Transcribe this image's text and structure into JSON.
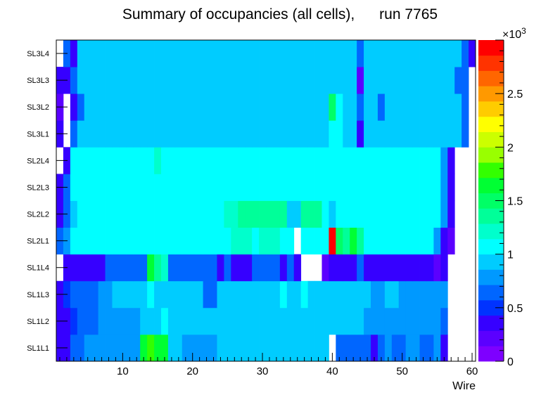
{
  "chart_data": {
    "type": "heatmap",
    "title": "Summary of occupancies (all cells),      run 7765",
    "xlabel": "Wire",
    "ylabel": "",
    "xlim": [
      0.5,
      60.5
    ],
    "x_ticks": [
      10,
      20,
      30,
      40,
      50,
      60
    ],
    "y_categories": [
      "SL1L1",
      "SL1L2",
      "SL1L3",
      "SL1L4",
      "SL2L1",
      "SL2L2",
      "SL2L3",
      "SL2L4",
      "SL3L1",
      "SL3L2",
      "SL3L3",
      "SL3L4"
    ],
    "z_range": [
      0,
      3000
    ],
    "z_ticks": [
      0,
      0.5,
      1,
      1.5,
      2,
      2.5
    ],
    "z_multiplier_base": "×10",
    "z_multiplier_exp": "3",
    "colorbar_colors": [
      "#7e00ff",
      "#5b00ff",
      "#3600ff",
      "#0033ff",
      "#0066ff",
      "#0099ff",
      "#00ccff",
      "#00ffff",
      "#00ffcc",
      "#00ff99",
      "#00ff66",
      "#00ff33",
      "#33ff00",
      "#99ff00",
      "#ccff00",
      "#ffff00",
      "#ffcc00",
      "#ff9900",
      "#ff6600",
      "#ff3300",
      "#ff0000"
    ],
    "rows": {
      "SL1L1": [
        300,
        400,
        650,
        650,
        750,
        750,
        750,
        750,
        750,
        750,
        750,
        750,
        1600,
        1800,
        1600,
        1700,
        900,
        900,
        750,
        750,
        750,
        750,
        750,
        900,
        900,
        900,
        900,
        900,
        900,
        900,
        900,
        900,
        900,
        900,
        900,
        900,
        900,
        900,
        900,
        null,
        650,
        650,
        650,
        650,
        650,
        400,
        650,
        750,
        650,
        650,
        750,
        750,
        650,
        650,
        750,
        400,
        null,
        null,
        null,
        null
      ],
      "SL1L2": [
        300,
        300,
        500,
        650,
        650,
        650,
        750,
        750,
        750,
        750,
        750,
        750,
        900,
        900,
        900,
        1100,
        900,
        900,
        900,
        900,
        900,
        900,
        900,
        900,
        900,
        900,
        900,
        900,
        900,
        900,
        900,
        900,
        900,
        900,
        900,
        900,
        900,
        900,
        900,
        900,
        900,
        900,
        900,
        900,
        750,
        750,
        750,
        750,
        750,
        750,
        750,
        750,
        750,
        750,
        750,
        650,
        null,
        null,
        null,
        null
      ],
      "SL1L3": [
        300,
        500,
        650,
        650,
        650,
        650,
        750,
        750,
        900,
        900,
        900,
        900,
        900,
        1100,
        900,
        900,
        900,
        900,
        900,
        900,
        900,
        650,
        650,
        900,
        900,
        900,
        900,
        900,
        900,
        900,
        900,
        900,
        1000,
        900,
        900,
        1000,
        900,
        900,
        900,
        900,
        900,
        900,
        900,
        900,
        900,
        750,
        750,
        900,
        900,
        750,
        750,
        750,
        750,
        750,
        750,
        750,
        null,
        null,
        null,
        null
      ],
      "SL1L4": [
        null,
        400,
        400,
        400,
        400,
        400,
        400,
        650,
        650,
        650,
        650,
        650,
        650,
        1700,
        1400,
        1200,
        650,
        650,
        650,
        650,
        650,
        650,
        650,
        400,
        650,
        400,
        400,
        400,
        650,
        650,
        650,
        650,
        400,
        650,
        400,
        null,
        null,
        null,
        150,
        400,
        400,
        400,
        400,
        650,
        400,
        400,
        300,
        400,
        400,
        400,
        300,
        400,
        400,
        300,
        150,
        400,
        null,
        null,
        null,
        null
      ],
      "SL2L1": [
        650,
        750,
        1050,
        1050,
        1050,
        1050,
        1050,
        1050,
        1050,
        1050,
        1050,
        1050,
        1050,
        1050,
        1050,
        1050,
        1050,
        1050,
        1050,
        1050,
        1050,
        1050,
        1050,
        1050,
        1050,
        1200,
        1200,
        1200,
        1050,
        1200,
        1200,
        1200,
        1050,
        1050,
        null,
        1050,
        1050,
        1100,
        1100,
        2900,
        1500,
        1400,
        1600,
        1300,
        1100,
        1050,
        1050,
        1050,
        1050,
        1050,
        1050,
        1050,
        1050,
        1050,
        750,
        400,
        150,
        null,
        null,
        null
      ],
      "SL2L2": [
        400,
        650,
        900,
        1050,
        1050,
        1050,
        1050,
        1050,
        1050,
        1050,
        1050,
        1050,
        1050,
        1050,
        1050,
        1050,
        1050,
        1050,
        1050,
        1050,
        1050,
        1050,
        1050,
        1050,
        1200,
        1200,
        1300,
        1300,
        1300,
        1300,
        1300,
        1300,
        1300,
        900,
        900,
        1300,
        1300,
        1300,
        1050,
        900,
        1050,
        1050,
        1050,
        1050,
        1050,
        1050,
        1050,
        1050,
        1050,
        1050,
        1050,
        1050,
        1050,
        1050,
        1050,
        750,
        400,
        null,
        null,
        null
      ],
      "SL2L3": [
        400,
        650,
        1050,
        1050,
        1050,
        1050,
        1050,
        1050,
        1050,
        1050,
        1050,
        1050,
        1050,
        1050,
        1050,
        1050,
        1050,
        1050,
        1050,
        1050,
        1050,
        1050,
        1050,
        1050,
        1050,
        1050,
        1050,
        1050,
        1050,
        1050,
        1050,
        1050,
        1050,
        1050,
        1050,
        1050,
        1050,
        1050,
        1050,
        1050,
        1050,
        1050,
        1050,
        1050,
        1050,
        1050,
        1050,
        1050,
        1050,
        1050,
        1050,
        1050,
        1050,
        1050,
        1050,
        750,
        400,
        null,
        null,
        null
      ],
      "SL2L4": [
        null,
        400,
        1050,
        1050,
        1050,
        1050,
        1050,
        1050,
        1050,
        1050,
        1050,
        1050,
        1050,
        1050,
        1200,
        1050,
        1050,
        1050,
        1050,
        1050,
        1050,
        1050,
        1050,
        1050,
        1050,
        1050,
        1050,
        1050,
        1050,
        1050,
        1050,
        1050,
        1050,
        1050,
        1050,
        1050,
        1050,
        1050,
        1050,
        1050,
        1050,
        1050,
        1050,
        1050,
        1050,
        1050,
        1050,
        1050,
        1050,
        1050,
        1050,
        1050,
        1050,
        1050,
        1050,
        750,
        400,
        null,
        null,
        null
      ],
      "SL3L1": [
        300,
        null,
        650,
        900,
        900,
        900,
        900,
        900,
        900,
        900,
        900,
        900,
        900,
        900,
        900,
        900,
        900,
        900,
        900,
        900,
        900,
        900,
        900,
        900,
        900,
        900,
        900,
        900,
        900,
        900,
        900,
        900,
        900,
        900,
        900,
        900,
        900,
        900,
        900,
        1050,
        1050,
        900,
        900,
        300,
        900,
        900,
        900,
        900,
        900,
        900,
        900,
        900,
        900,
        900,
        900,
        900,
        900,
        900,
        650,
        null
      ],
      "SL3L2": [
        150,
        null,
        400,
        650,
        900,
        900,
        900,
        900,
        900,
        900,
        900,
        900,
        900,
        900,
        900,
        900,
        900,
        900,
        900,
        900,
        900,
        900,
        900,
        900,
        900,
        900,
        900,
        900,
        900,
        900,
        900,
        900,
        900,
        900,
        900,
        900,
        900,
        900,
        900,
        1500,
        1050,
        900,
        900,
        650,
        900,
        900,
        650,
        900,
        900,
        900,
        900,
        900,
        900,
        900,
        900,
        900,
        900,
        900,
        650,
        null
      ],
      "SL3L3": [
        300,
        400,
        650,
        900,
        900,
        900,
        900,
        900,
        900,
        900,
        900,
        900,
        900,
        900,
        900,
        900,
        900,
        900,
        900,
        900,
        900,
        900,
        900,
        900,
        900,
        900,
        900,
        900,
        900,
        900,
        900,
        900,
        900,
        900,
        900,
        900,
        900,
        900,
        900,
        900,
        900,
        900,
        900,
        150,
        900,
        900,
        900,
        900,
        900,
        900,
        900,
        900,
        900,
        900,
        900,
        900,
        900,
        650,
        650,
        null
      ],
      "SL3L4": [
        null,
        650,
        400,
        900,
        900,
        900,
        900,
        900,
        900,
        900,
        900,
        900,
        900,
        900,
        900,
        900,
        900,
        900,
        900,
        900,
        900,
        900,
        900,
        900,
        900,
        900,
        900,
        900,
        900,
        900,
        900,
        900,
        900,
        900,
        900,
        900,
        900,
        900,
        900,
        900,
        900,
        900,
        900,
        650,
        900,
        900,
        900,
        900,
        900,
        900,
        900,
        900,
        900,
        900,
        900,
        900,
        900,
        900,
        650,
        300
      ]
    }
  }
}
